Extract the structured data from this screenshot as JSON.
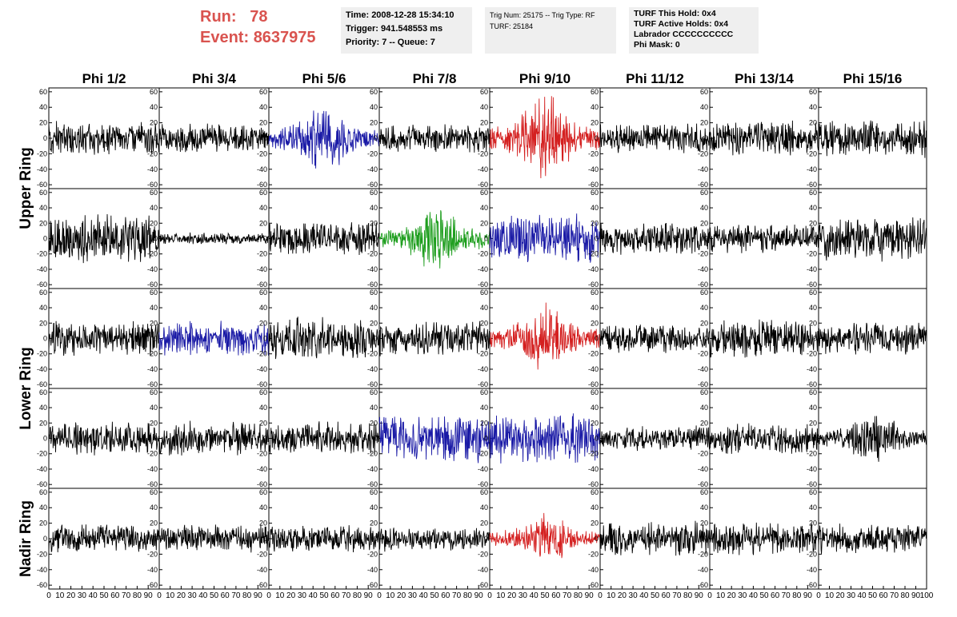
{
  "header": {
    "run_label": "Run:",
    "run_value": "78",
    "event_label": "Event:",
    "event_value": "8637975",
    "time_box": [
      "Time: 2008-12-28 15:34:10",
      "Trigger: 941.548553 ms",
      "Priority: 7 -- Queue: 7"
    ],
    "trig_box": [
      "Trig Num: 25175 -- Trig Type: RF",
      "",
      "TURF: 25184"
    ],
    "turf_box": [
      "TURF This Hold: 0x4",
      "TURF Active Holds: 0x4",
      "Labrador CCCCCCCCCC",
      "Phi Mask: 0"
    ],
    "run_color": "#d9534f"
  },
  "chart_data": {
    "type": "line",
    "title": "",
    "columns": [
      "Phi 1/2",
      "Phi 3/4",
      "Phi 5/6",
      "Phi 7/8",
      "Phi 9/10",
      "Phi 11/12",
      "Phi 13/14",
      "Phi 15/16"
    ],
    "row_groups": [
      {
        "label": "Upper Ring",
        "rows": [
          0,
          1
        ]
      },
      {
        "label": "Lower Ring",
        "rows": [
          2,
          3
        ]
      },
      {
        "label": "Nadir Ring",
        "rows": [
          4
        ]
      }
    ],
    "xlim": [
      0,
      100
    ],
    "ylim": [
      -65,
      65
    ],
    "x_ticks": [
      0,
      10,
      20,
      30,
      40,
      50,
      60,
      70,
      80,
      90
    ],
    "x_tick_labels_last": [
      "0",
      "10",
      "20",
      "30",
      "40",
      "50",
      "60",
      "70",
      "80",
      "90",
      "100"
    ],
    "y_ticks": [
      -60,
      -40,
      -20,
      0,
      20,
      40,
      60
    ],
    "samples_per_trace": 260,
    "colors": {
      "black": "#000000",
      "blue": "#1a1aa6",
      "red": "#d42020",
      "green": "#1e9e1e"
    },
    "panels": [
      [
        {
          "color": "black",
          "amp": 14,
          "envelope": false
        },
        {
          "color": "black",
          "amp": 12,
          "envelope": false
        },
        {
          "color": "blue",
          "amp": 24,
          "envelope": true
        },
        {
          "color": "black",
          "amp": 11,
          "envelope": false
        },
        {
          "color": "red",
          "amp": 28,
          "envelope": true
        },
        {
          "color": "black",
          "amp": 13,
          "envelope": false
        },
        {
          "color": "black",
          "amp": 14,
          "envelope": false
        },
        {
          "color": "black",
          "amp": 15,
          "envelope": false
        }
      ],
      [
        {
          "color": "black",
          "amp": 20,
          "envelope": false
        },
        {
          "color": "black",
          "amp": 5,
          "envelope": false
        },
        {
          "color": "black",
          "amp": 14,
          "envelope": false
        },
        {
          "color": "green",
          "amp": 22,
          "envelope": true
        },
        {
          "color": "blue",
          "amp": 20,
          "envelope": false
        },
        {
          "color": "black",
          "amp": 13,
          "envelope": false
        },
        {
          "color": "black",
          "amp": 12,
          "envelope": false
        },
        {
          "color": "black",
          "amp": 18,
          "envelope": false
        }
      ],
      [
        {
          "color": "black",
          "amp": 14,
          "envelope": false
        },
        {
          "color": "blue",
          "amp": 14,
          "envelope": false
        },
        {
          "color": "black",
          "amp": 17,
          "envelope": false
        },
        {
          "color": "black",
          "amp": 14,
          "envelope": false
        },
        {
          "color": "red",
          "amp": 24,
          "envelope": true
        },
        {
          "color": "black",
          "amp": 12,
          "envelope": false
        },
        {
          "color": "black",
          "amp": 16,
          "envelope": false
        },
        {
          "color": "black",
          "amp": 13,
          "envelope": false
        }
      ],
      [
        {
          "color": "black",
          "amp": 14,
          "envelope": false
        },
        {
          "color": "black",
          "amp": 14,
          "envelope": false
        },
        {
          "color": "black",
          "amp": 14,
          "envelope": false
        },
        {
          "color": "blue",
          "amp": 20,
          "envelope": false
        },
        {
          "color": "blue",
          "amp": 20,
          "envelope": false
        },
        {
          "color": "black",
          "amp": 10,
          "envelope": false
        },
        {
          "color": "black",
          "amp": 13,
          "envelope": false
        },
        {
          "color": "black",
          "amp": 18,
          "envelope": true
        }
      ],
      [
        {
          "color": "black",
          "amp": 12,
          "envelope": false
        },
        {
          "color": "black",
          "amp": 11,
          "envelope": false
        },
        {
          "color": "black",
          "amp": 11,
          "envelope": false
        },
        {
          "color": "black",
          "amp": 10,
          "envelope": false
        },
        {
          "color": "red",
          "amp": 17,
          "envelope": true
        },
        {
          "color": "black",
          "amp": 14,
          "envelope": false
        },
        {
          "color": "black",
          "amp": 13,
          "envelope": false
        },
        {
          "color": "black",
          "amp": 12,
          "envelope": false
        }
      ]
    ]
  }
}
